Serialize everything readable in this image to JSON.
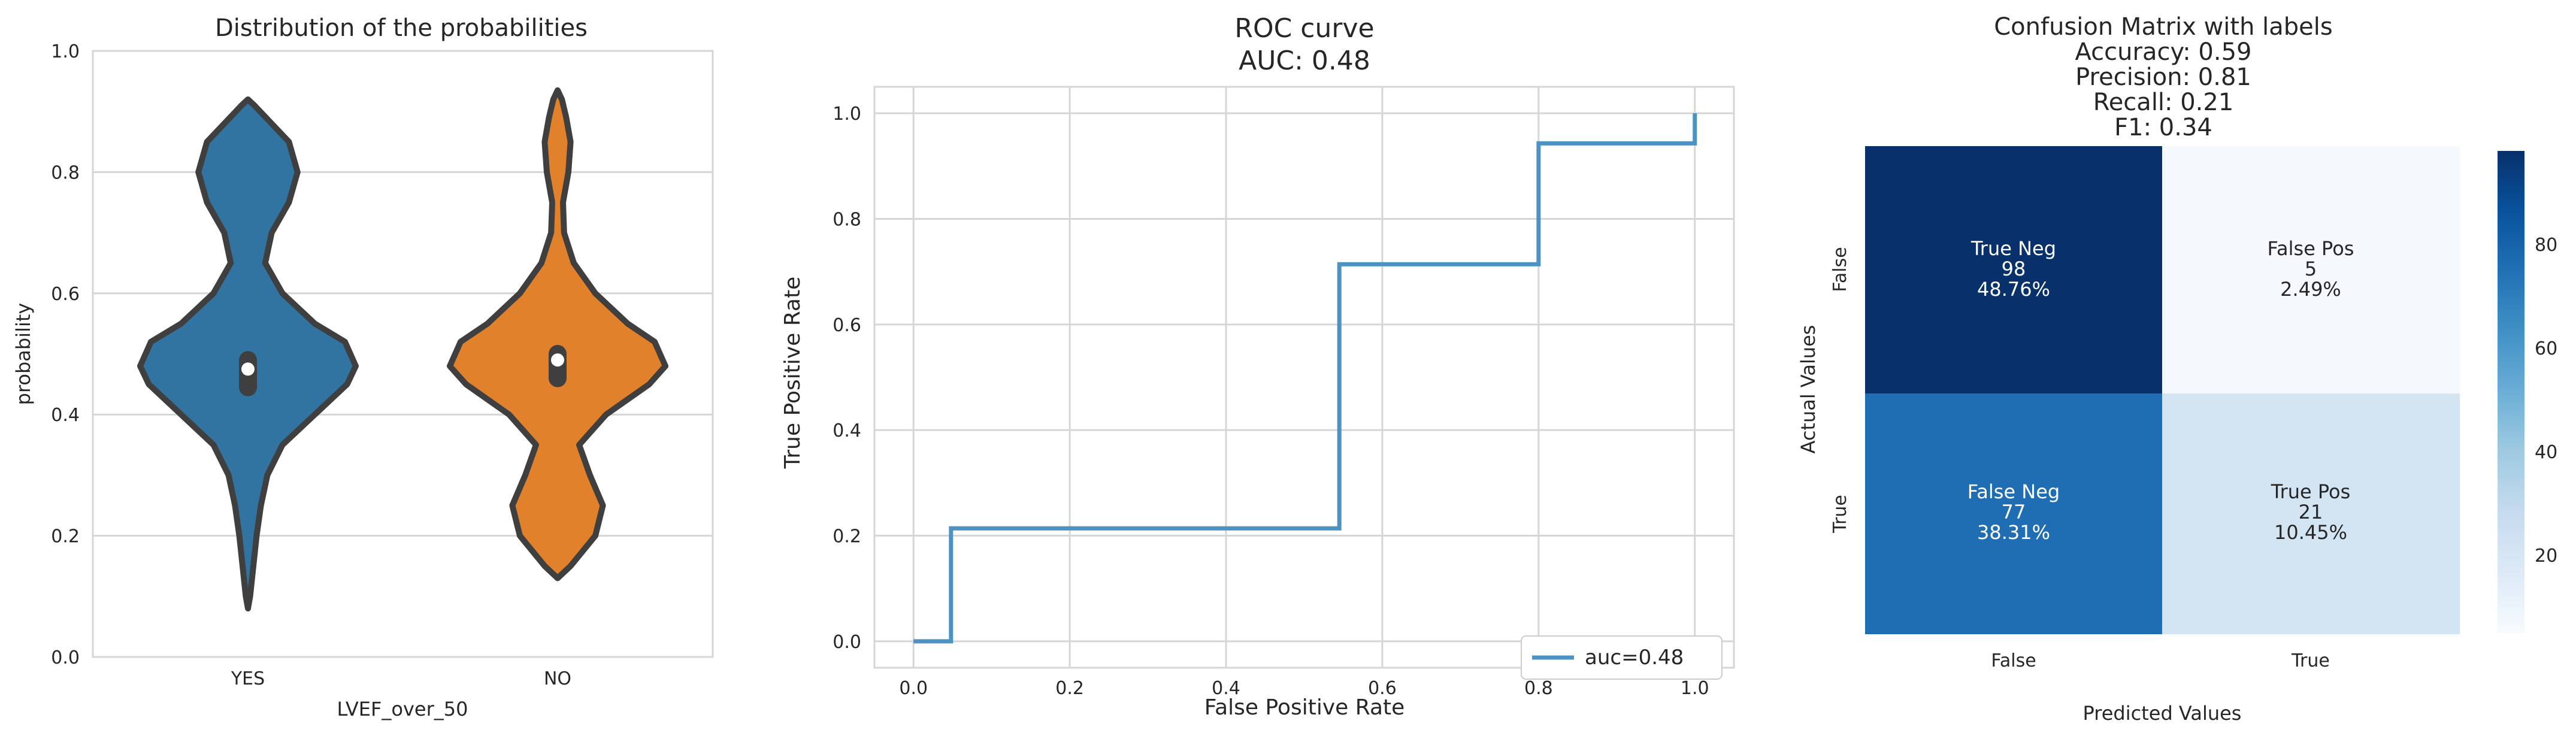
{
  "chart_data": [
    {
      "type": "violin",
      "title": "Distribution of the probabilities",
      "xlabel": "LVEF_over_50",
      "ylabel": "probability",
      "ylim": [
        0,
        1
      ],
      "yticks": [
        "0.0",
        "0.2",
        "0.4",
        "0.6",
        "0.8",
        "1.0"
      ],
      "categories": [
        "YES",
        "NO"
      ],
      "colors": [
        "#3274a1",
        "#e1812c"
      ],
      "violins": [
        {
          "name": "YES",
          "median": 0.475,
          "q1": 0.445,
          "q3": 0.49,
          "profile": [
            [
              0.08,
              0
            ],
            [
              0.1,
              0.02
            ],
            [
              0.15,
              0.05
            ],
            [
              0.2,
              0.08
            ],
            [
              0.25,
              0.12
            ],
            [
              0.3,
              0.18
            ],
            [
              0.35,
              0.32
            ],
            [
              0.4,
              0.62
            ],
            [
              0.45,
              0.92
            ],
            [
              0.48,
              1.0
            ],
            [
              0.52,
              0.9
            ],
            [
              0.55,
              0.62
            ],
            [
              0.6,
              0.32
            ],
            [
              0.65,
              0.16
            ],
            [
              0.7,
              0.22
            ],
            [
              0.75,
              0.38
            ],
            [
              0.8,
              0.46
            ],
            [
              0.85,
              0.38
            ],
            [
              0.88,
              0.22
            ],
            [
              0.91,
              0.06
            ],
            [
              0.92,
              0
            ]
          ]
        },
        {
          "name": "NO",
          "median": 0.49,
          "q1": 0.46,
          "q3": 0.5,
          "profile": [
            [
              0.13,
              0
            ],
            [
              0.15,
              0.12
            ],
            [
              0.2,
              0.35
            ],
            [
              0.25,
              0.42
            ],
            [
              0.3,
              0.3
            ],
            [
              0.35,
              0.2
            ],
            [
              0.4,
              0.45
            ],
            [
              0.45,
              0.85
            ],
            [
              0.48,
              1.0
            ],
            [
              0.52,
              0.9
            ],
            [
              0.55,
              0.65
            ],
            [
              0.6,
              0.35
            ],
            [
              0.65,
              0.15
            ],
            [
              0.7,
              0.06
            ],
            [
              0.75,
              0.05
            ],
            [
              0.8,
              0.1
            ],
            [
              0.85,
              0.12
            ],
            [
              0.89,
              0.08
            ],
            [
              0.92,
              0.04
            ],
            [
              0.935,
              0
            ]
          ]
        }
      ]
    },
    {
      "type": "line",
      "title": "ROC curve",
      "subtitle": "AUC: 0.48",
      "xlabel": "False Positive Rate",
      "ylabel": "True Positive Rate",
      "xlim": [
        -0.05,
        1.05
      ],
      "ylim": [
        -0.05,
        1.05
      ],
      "xticks": [
        "0.0",
        "0.2",
        "0.4",
        "0.6",
        "0.8",
        "1.0"
      ],
      "yticks": [
        "0.0",
        "0.2",
        "0.4",
        "0.6",
        "0.8",
        "1.0"
      ],
      "legend": "auc=0.48",
      "legend_position": "lower-right",
      "color": "#4c92c3",
      "series": [
        {
          "name": "auc=0.48",
          "x": [
            0.0,
            0.048,
            0.048,
            0.545,
            0.545,
            0.8,
            0.8,
            1.0,
            1.0
          ],
          "y": [
            0.0,
            0.0,
            0.214,
            0.214,
            0.714,
            0.714,
            0.943,
            0.943,
            1.0
          ]
        }
      ]
    },
    {
      "type": "heatmap",
      "title": "Confusion Matrix with labels",
      "metrics": [
        "Accuracy: 0.59",
        "Precision: 0.81",
        "Recall: 0.21",
        "F1: 0.34"
      ],
      "xlabel": "Predicted Values",
      "ylabel": "Actual Values",
      "xticks": [
        "False",
        "True"
      ],
      "yticks": [
        "False",
        "True"
      ],
      "cells": [
        [
          {
            "label": "True Neg",
            "count": "98",
            "pct": "48.76%",
            "value": 98,
            "color": "#08306b",
            "text_color": "#ffffff"
          },
          {
            "label": "False Pos",
            "count": "5",
            "pct": "2.49%",
            "value": 5,
            "color": "#f5f9fe",
            "text_color": "#262626"
          }
        ],
        [
          {
            "label": "False Neg",
            "count": "77",
            "pct": "38.31%",
            "value": 77,
            "color": "#1f6eb3",
            "text_color": "#ffffff"
          },
          {
            "label": "True Pos",
            "count": "21",
            "pct": "10.45%",
            "value": 21,
            "color": "#d3e4f3",
            "text_color": "#262626"
          }
        ]
      ],
      "colorbar": {
        "range": [
          5,
          98
        ],
        "ticks": [
          20,
          40,
          60,
          80
        ],
        "tick_labels": [
          "20",
          "40",
          "60",
          "80"
        ]
      }
    }
  ]
}
